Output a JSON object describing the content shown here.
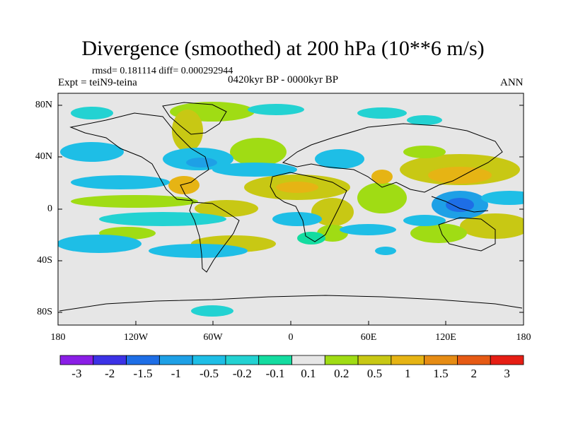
{
  "title": "Divergence (smoothed) at 200 hPa (10**6 m/s)",
  "stats": "rmsd= 0.181114 diff= 0.000292944",
  "experiment": "Expt = teiN9-teina",
  "period": "0420kyr BP - 0000kyr BP",
  "season": "ANN",
  "lat_ticks": [
    "80N",
    "40N",
    "0",
    "40S",
    "80S"
  ],
  "lon_ticks": [
    "180",
    "120W",
    "60W",
    "0",
    "60E",
    "120E",
    "180"
  ],
  "colorbar": {
    "labels": [
      "-3",
      "-2",
      "-1.5",
      "-1",
      "-0.5",
      "-0.2",
      "-0.1",
      "0.1",
      "0.2",
      "0.5",
      "1",
      "1.5",
      "2",
      "3"
    ],
    "colors": [
      "#8a1ee6",
      "#3c32e6",
      "#1e6ee6",
      "#1ea0e6",
      "#1ebee6",
      "#23d2d2",
      "#14dca0",
      "#e6e6e6",
      "#a0dc14",
      "#c8c814",
      "#e6b414",
      "#e68c14",
      "#e65a14",
      "#e61e14"
    ]
  },
  "legend_colors": {
    "background": "#e6e6e6",
    "neg_light": "#1ebee6",
    "neg_mid": "#1ea0e6",
    "neg_teal": "#14dca0",
    "pos_light": "#a0dc14",
    "pos_mid": "#c8c814",
    "pos_strong": "#e6b414",
    "pos_max": "#e68c14"
  }
}
